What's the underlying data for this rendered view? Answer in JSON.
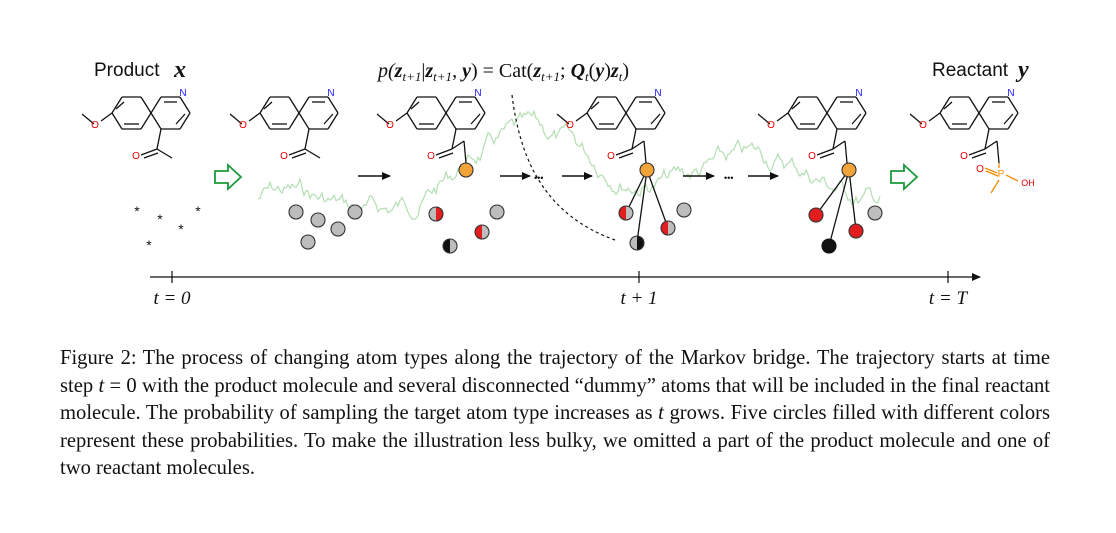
{
  "figure": {
    "product_label": "Product",
    "product_var": "x",
    "reactant_label": "Reactant",
    "reactant_var": "y",
    "equation": "p(z_{t+1}|z_{t+1}, y) = Cat(z_{t+1}; Q_t(y) z_t)",
    "equation_parts": {
      "p": "p(",
      "z1": "z",
      "sub1": "t+1",
      "bar": "|",
      "z2": "z",
      "sub2": "t+1",
      "comma_y": ", ",
      "y": "y",
      "close_eq": ") = Cat(",
      "z3": "z",
      "sub3": "t+1",
      "semi": "; ",
      "Q": "Q",
      "subq": "t",
      "qy_open": "(",
      "qy": "y",
      "qy_close": ")",
      "z4": "z",
      "sub4": "t",
      "end": ")"
    },
    "timeline_labels": [
      "t = 0",
      "t + 1",
      "t = T"
    ],
    "atom_N": "N",
    "atom_O": "O",
    "atom_OH": "OH",
    "atom_P": "P",
    "ellipsis": "•••",
    "colors": {
      "nitrogen": "#1a1aff",
      "oxygen": "#e60000",
      "phosphorus": "#f08c00",
      "arrow_green": "#1a9a3a",
      "trajectory_green": "#9ad39a",
      "circle_grey": "#bdbdbd",
      "circle_red": "#e31e1e",
      "circle_orange": "#f2a33a",
      "circle_black": "#111111"
    }
  },
  "caption": {
    "label": "Figure 2:",
    "text_parts": [
      "The process of changing atom types along the trajectory of the Markov bridge. The trajectory starts at time step ",
      "t",
      " = 0 with the product molecule and several disconnected “dummy” atoms that will be included in the final reactant molecule. The probability of sampling the target atom type increases as ",
      "t",
      " grows. Five circles filled with different colors represent these probabilities. To make the illustration less bulky, we omitted a part of the product molecule and one of two reactant molecules."
    ]
  }
}
